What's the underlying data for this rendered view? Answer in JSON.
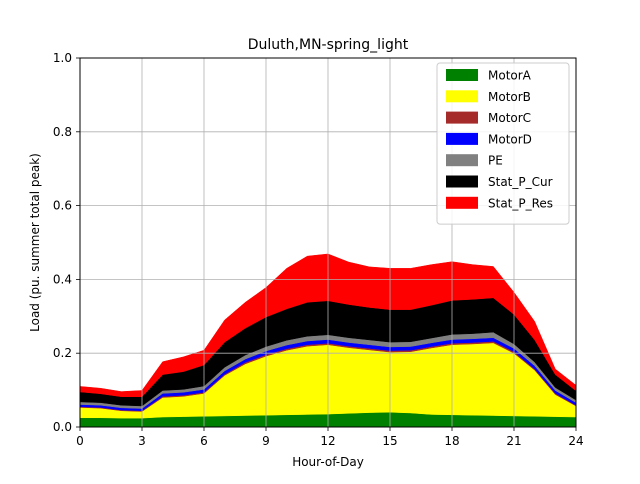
{
  "chart_data": {
    "type": "area",
    "stacked": true,
    "title": "Duluth,MN-spring_light",
    "xlabel": "Hour-of-Day",
    "ylabel": "Load (pu. summer total peak)",
    "xlim": [
      0,
      24
    ],
    "ylim": [
      0,
      1.0
    ],
    "xticks": [
      0,
      3,
      6,
      9,
      12,
      15,
      18,
      21,
      24
    ],
    "yticks": [
      0.0,
      0.2,
      0.4,
      0.6,
      0.8,
      1.0
    ],
    "xtick_labels": [
      "0",
      "3",
      "6",
      "9",
      "12",
      "15",
      "18",
      "21",
      "24"
    ],
    "ytick_labels": [
      "0.0",
      "0.2",
      "0.4",
      "0.6",
      "0.8",
      "1.0"
    ],
    "grid": true,
    "legend_position": "top-right",
    "x": [
      0,
      1,
      2,
      3,
      4,
      5,
      6,
      7,
      8,
      9,
      10,
      11,
      12,
      13,
      14,
      15,
      16,
      17,
      18,
      19,
      20,
      21,
      22,
      23,
      24
    ],
    "series": [
      {
        "name": "MotorA",
        "color": "#008000",
        "values": [
          0.025,
          0.025,
          0.024,
          0.024,
          0.027,
          0.028,
          0.029,
          0.03,
          0.031,
          0.032,
          0.033,
          0.034,
          0.035,
          0.037,
          0.039,
          0.04,
          0.038,
          0.034,
          0.033,
          0.032,
          0.031,
          0.03,
          0.029,
          0.028,
          0.027
        ]
      },
      {
        "name": "MotorB",
        "color": "#ffff00",
        "values": [
          0.028,
          0.026,
          0.02,
          0.018,
          0.053,
          0.055,
          0.062,
          0.11,
          0.14,
          0.16,
          0.175,
          0.185,
          0.188,
          0.178,
          0.17,
          0.163,
          0.166,
          0.18,
          0.19,
          0.193,
          0.197,
          0.17,
          0.125,
          0.06,
          0.03
        ]
      },
      {
        "name": "MotorC",
        "color": "#a52a2a",
        "values": [
          0.002,
          0.002,
          0.002,
          0.002,
          0.003,
          0.003,
          0.003,
          0.003,
          0.004,
          0.004,
          0.004,
          0.004,
          0.004,
          0.004,
          0.004,
          0.004,
          0.004,
          0.004,
          0.004,
          0.004,
          0.004,
          0.004,
          0.003,
          0.003,
          0.002
        ]
      },
      {
        "name": "MotorD",
        "color": "#0000ff",
        "values": [
          0.006,
          0.006,
          0.006,
          0.006,
          0.008,
          0.008,
          0.008,
          0.009,
          0.009,
          0.01,
          0.01,
          0.01,
          0.01,
          0.01,
          0.01,
          0.01,
          0.01,
          0.01,
          0.01,
          0.01,
          0.01,
          0.009,
          0.009,
          0.008,
          0.007
        ]
      },
      {
        "name": "PE",
        "color": "#808080",
        "values": [
          0.007,
          0.007,
          0.007,
          0.007,
          0.008,
          0.008,
          0.009,
          0.01,
          0.011,
          0.012,
          0.013,
          0.013,
          0.013,
          0.013,
          0.013,
          0.013,
          0.013,
          0.013,
          0.014,
          0.014,
          0.015,
          0.012,
          0.01,
          0.008,
          0.007
        ]
      },
      {
        "name": "Stat_P_Cur",
        "color": "#000000",
        "values": [
          0.027,
          0.024,
          0.023,
          0.025,
          0.043,
          0.048,
          0.057,
          0.068,
          0.073,
          0.08,
          0.085,
          0.092,
          0.092,
          0.09,
          0.088,
          0.088,
          0.087,
          0.089,
          0.092,
          0.093,
          0.093,
          0.08,
          0.06,
          0.035,
          0.025
        ]
      },
      {
        "name": "Stat_P_Res",
        "color": "#ff0000",
        "values": [
          0.015,
          0.015,
          0.014,
          0.017,
          0.035,
          0.04,
          0.04,
          0.06,
          0.07,
          0.08,
          0.11,
          0.125,
          0.127,
          0.115,
          0.11,
          0.112,
          0.112,
          0.11,
          0.105,
          0.094,
          0.085,
          0.06,
          0.05,
          0.015,
          0.015
        ]
      }
    ]
  }
}
